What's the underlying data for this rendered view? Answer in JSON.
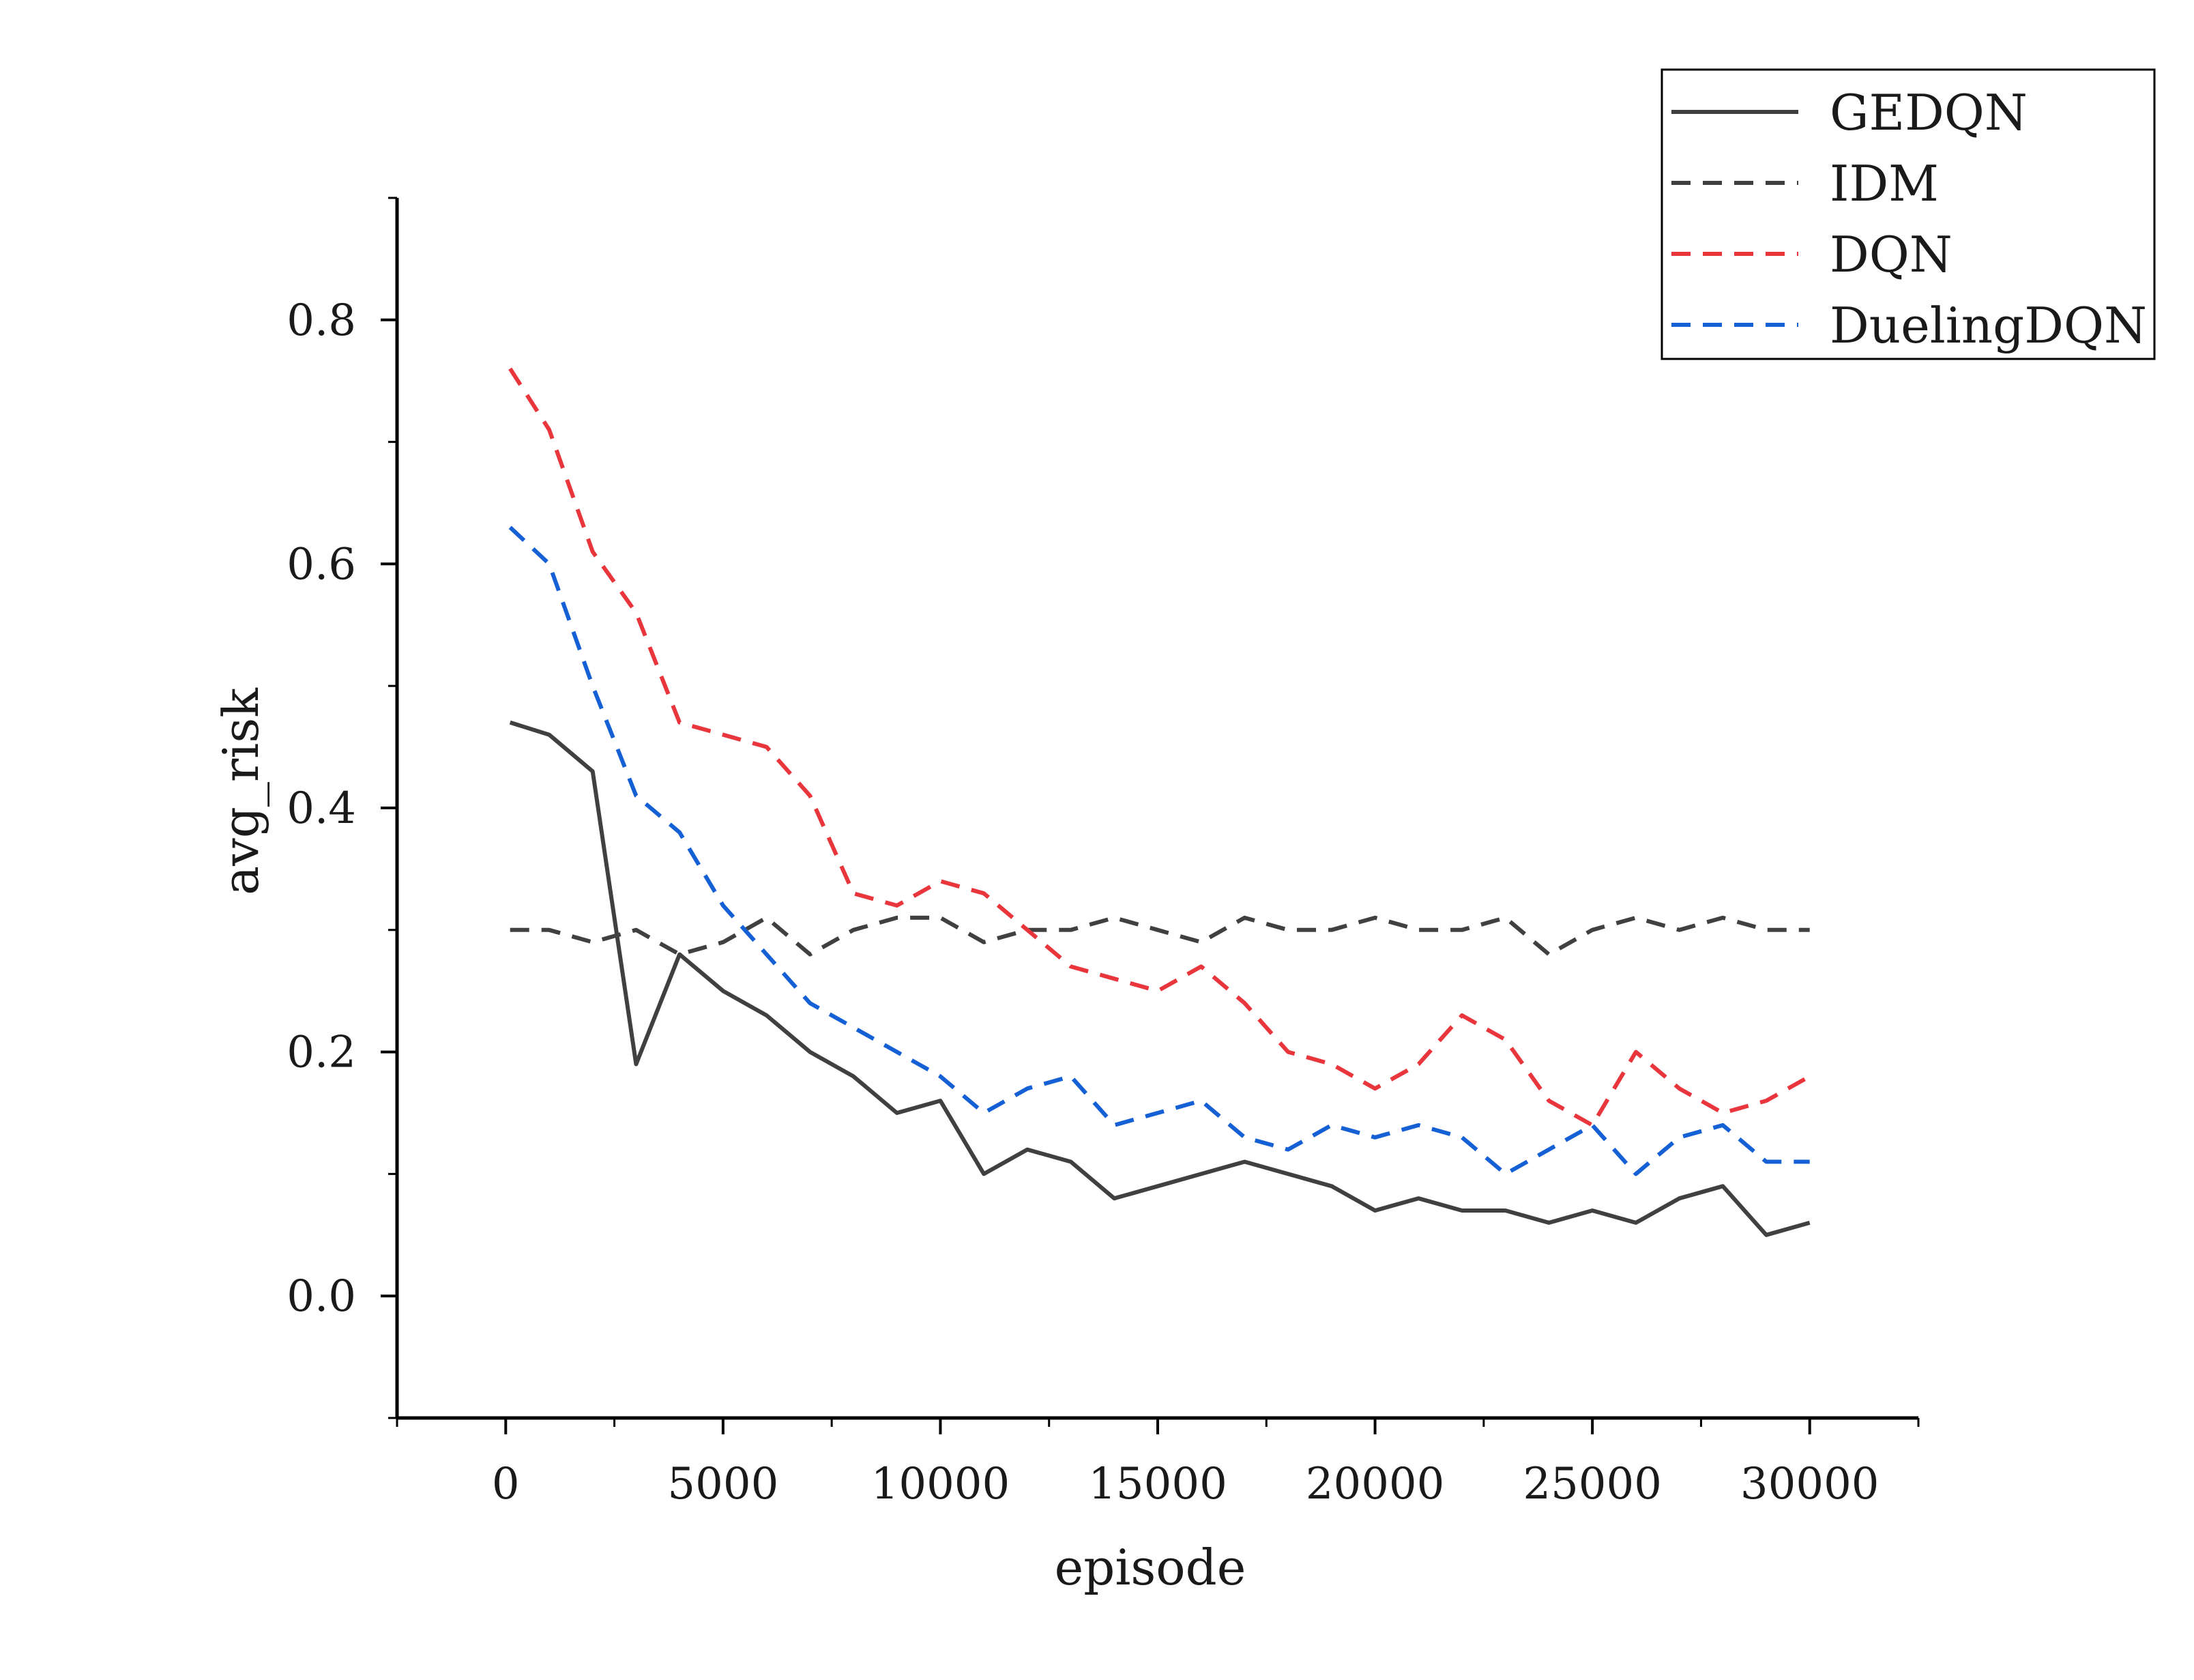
{
  "chart_data": {
    "type": "line",
    "title": "",
    "xlabel": "episode",
    "ylabel": "avg_risk",
    "xlim": [
      -2500,
      32500
    ],
    "ylim": [
      -0.1,
      0.9
    ],
    "xticks": [
      0,
      5000,
      10000,
      15000,
      20000,
      25000,
      30000
    ],
    "xtick_labels": [
      "0",
      "5000",
      "10000",
      "15000",
      "20000",
      "25000",
      "30000"
    ],
    "yticks": [
      0.0,
      0.2,
      0.4,
      0.6,
      0.8
    ],
    "ytick_labels": [
      "0.0",
      "0.2",
      "0.4",
      "0.6",
      "0.8"
    ],
    "legend_position": "top-right, outside plot",
    "grid": false,
    "x": [
      100,
      1000,
      2000,
      3000,
      4000,
      5000,
      6000,
      7000,
      8000,
      9000,
      10000,
      11000,
      12000,
      13000,
      14000,
      15000,
      16000,
      17000,
      18000,
      19000,
      20000,
      21000,
      22000,
      23000,
      24000,
      25000,
      26000,
      27000,
      28000,
      29000,
      30000
    ],
    "series": [
      {
        "name": "GEDQN",
        "color": "#404040",
        "style": "solid",
        "values": [
          0.47,
          0.46,
          0.43,
          0.19,
          0.28,
          0.25,
          0.23,
          0.2,
          0.18,
          0.15,
          0.16,
          0.1,
          0.12,
          0.11,
          0.08,
          0.09,
          0.1,
          0.11,
          0.1,
          0.09,
          0.07,
          0.08,
          0.07,
          0.07,
          0.06,
          0.07,
          0.06,
          0.08,
          0.09,
          0.05,
          0.06
        ]
      },
      {
        "name": "IDM",
        "color": "#404040",
        "style": "dashed",
        "values": [
          0.3,
          0.3,
          0.29,
          0.3,
          0.28,
          0.29,
          0.31,
          0.28,
          0.3,
          0.31,
          0.31,
          0.29,
          0.3,
          0.3,
          0.31,
          0.3,
          0.29,
          0.31,
          0.3,
          0.3,
          0.31,
          0.3,
          0.3,
          0.31,
          0.28,
          0.3,
          0.31,
          0.3,
          0.31,
          0.3,
          0.3
        ]
      },
      {
        "name": "DQN",
        "color": "#e8363c",
        "style": "dashed",
        "values": [
          0.76,
          0.71,
          0.61,
          0.56,
          0.47,
          0.46,
          0.45,
          0.41,
          0.33,
          0.32,
          0.34,
          0.33,
          0.3,
          0.27,
          0.26,
          0.25,
          0.27,
          0.24,
          0.2,
          0.19,
          0.17,
          0.19,
          0.23,
          0.21,
          0.16,
          0.14,
          0.2,
          0.17,
          0.15,
          0.16,
          0.18
        ]
      },
      {
        "name": "DuelingDQN",
        "color": "#1560d4",
        "style": "dashed",
        "values": [
          0.63,
          0.6,
          0.5,
          0.41,
          0.38,
          0.32,
          0.28,
          0.24,
          0.22,
          0.2,
          0.18,
          0.15,
          0.17,
          0.18,
          0.14,
          0.15,
          0.16,
          0.13,
          0.12,
          0.14,
          0.13,
          0.14,
          0.13,
          0.1,
          0.12,
          0.14,
          0.1,
          0.13,
          0.14,
          0.11,
          0.11
        ]
      }
    ]
  }
}
